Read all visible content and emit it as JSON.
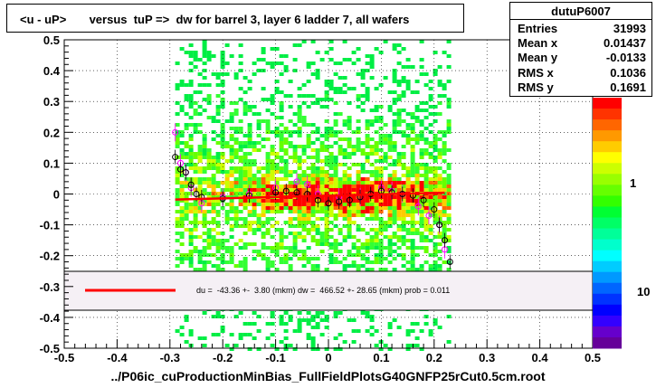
{
  "title": "<u - uP>       versus  tuP =>  dw for barrel 3, layer 6 ladder 7, all wafers",
  "stats": {
    "name": "dutuP6007",
    "rows": [
      {
        "key": "Entries",
        "value": "31993"
      },
      {
        "key": "Mean x",
        "value": "0.01437"
      },
      {
        "key": "Mean y",
        "value": "-0.0133"
      },
      {
        "key": "RMS x",
        "value": "0.1036"
      },
      {
        "key": "RMS y",
        "value": "0.1691"
      }
    ]
  },
  "footer": "../P06ic_cuProductionMinBias_FullFieldPlotsG40GNFP25rCut0.5cm.root",
  "fit_legend": "du =  -43.36 +-  3.80 (mkm) dw =  466.52 +- 28.65 (mkm) prob = 0.011",
  "colors": {
    "fit_line": "#ff0000",
    "profile_black": "#000000",
    "profile_magenta": "#ff00ff",
    "legend_bg": "#f5f0f5"
  },
  "chart_data": {
    "type": "heatmap",
    "xlim": [
      -0.5,
      0.5
    ],
    "ylim": [
      -0.5,
      0.5
    ],
    "x_ticks": [
      "-0.5",
      "-0.4",
      "-0.3",
      "-0.2",
      "-0.1",
      "0",
      "0.1",
      "0.2",
      "0.3",
      "0.4",
      "0.5"
    ],
    "y_ticks": [
      "-0.5",
      "-0.4",
      "-0.3",
      "-0.2",
      "-0.1",
      "0",
      "0.1",
      "0.2",
      "0.3",
      "0.4",
      "0.5"
    ],
    "grid": true,
    "palette_labels": [
      "1",
      "10"
    ],
    "fit_line": {
      "x": [
        -0.29,
        0.22
      ],
      "y": [
        -0.018,
        0.004
      ]
    },
    "profile_black": {
      "x": [
        -0.29,
        -0.28,
        -0.27,
        -0.26,
        -0.25,
        -0.24,
        -0.2,
        -0.15,
        -0.1,
        -0.08,
        -0.06,
        -0.04,
        -0.02,
        0.0,
        0.02,
        0.04,
        0.06,
        0.08,
        0.1,
        0.12,
        0.14,
        0.16,
        0.18,
        0.2,
        0.21,
        0.22,
        0.23
      ],
      "y": [
        0.12,
        0.08,
        0.07,
        0.03,
        0.0,
        -0.01,
        -0.015,
        -0.005,
        0.005,
        0.01,
        0.005,
        0.0,
        -0.02,
        -0.03,
        -0.025,
        -0.02,
        -0.01,
        0.0,
        0.01,
        0.005,
        0.0,
        -0.005,
        -0.02,
        -0.05,
        -0.1,
        -0.15,
        -0.22
      ]
    },
    "profile_magenta": {
      "x": [
        -0.29,
        -0.28,
        -0.27,
        -0.26,
        -0.24,
        -0.2,
        -0.15,
        -0.1,
        -0.06,
        -0.04,
        -0.02,
        0.02,
        0.06,
        0.1,
        0.12,
        0.14,
        0.17,
        0.19,
        0.21,
        0.22
      ],
      "y": [
        0.2,
        0.1,
        0.07,
        0.02,
        -0.03,
        -0.01,
        0.0,
        0.02,
        0.04,
        0.03,
        0.0,
        -0.01,
        -0.01,
        0.02,
        0.01,
        0.0,
        -0.04,
        -0.07,
        -0.1,
        -0.18
      ]
    }
  }
}
